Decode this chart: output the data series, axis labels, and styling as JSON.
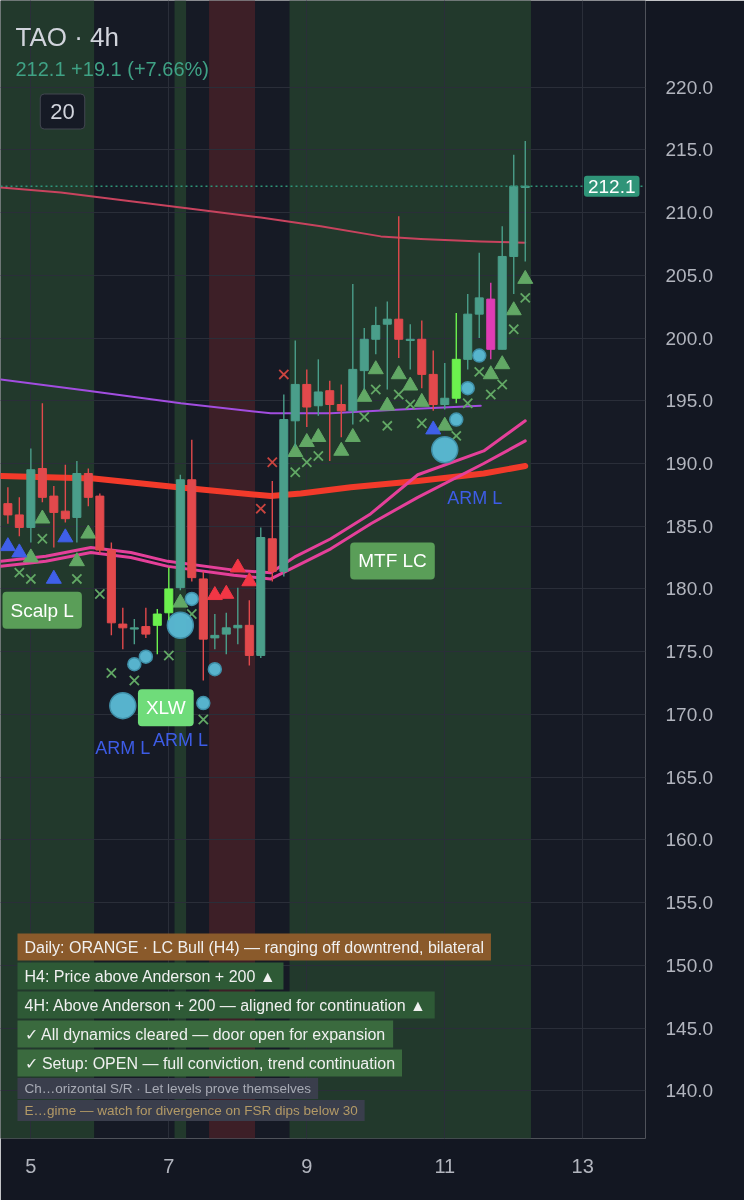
{
  "chart_data": {
    "type": "candlestick",
    "title": "TAO · 4h",
    "subtitle": "212.1 +19.1 (+7.66%)",
    "x": [
      4.667,
      4.833,
      5.0,
      5.167,
      5.333,
      5.5,
      5.667,
      5.833,
      6.0,
      6.167,
      6.333,
      6.5,
      6.667,
      6.833,
      7.0,
      7.167,
      7.333,
      7.5,
      7.667,
      7.833,
      8.0,
      8.167,
      8.333,
      8.5,
      8.667,
      8.833,
      9.0,
      9.167,
      9.333,
      9.5,
      9.667,
      9.833,
      10.0,
      10.167,
      10.333,
      10.5,
      10.667,
      10.833,
      11.0,
      11.167,
      11.333,
      11.5,
      11.667,
      11.833,
      12.0,
      12.167
    ],
    "ohlc": [
      [
        186.8,
        188.1,
        185.2,
        185.9
      ],
      [
        185.9,
        187.3,
        184.2,
        184.9
      ],
      [
        184.9,
        191.2,
        183.7,
        189.5
      ],
      [
        189.6,
        194.8,
        186.9,
        187.3
      ],
      [
        187.4,
        188.2,
        183.3,
        186.1
      ],
      [
        186.2,
        189.9,
        185.3,
        185.6
      ],
      [
        185.7,
        190.2,
        183.7,
        189.2
      ],
      [
        189.2,
        189.6,
        186.6,
        187.3
      ],
      [
        187.4,
        187.6,
        182.8,
        183.1
      ],
      [
        183.1,
        183.7,
        176.3,
        177.3
      ],
      [
        177.2,
        178.5,
        175.2,
        176.9
      ],
      [
        176.8,
        177.6,
        175.6,
        176.9
      ],
      [
        177.0,
        178.5,
        176.1,
        176.4
      ],
      [
        177.1,
        178.4,
        174.8,
        178.0
      ],
      [
        178.1,
        181.7,
        177.5,
        180.0
      ],
      [
        180.1,
        189.1,
        179.9,
        188.7
      ],
      [
        188.7,
        191.9,
        180.6,
        180.9
      ],
      [
        180.8,
        181.4,
        172.7,
        176.0
      ],
      [
        176.1,
        178.0,
        175.2,
        176.3
      ],
      [
        176.4,
        178.1,
        174.8,
        176.9
      ],
      [
        176.9,
        180.1,
        175.6,
        177.1
      ],
      [
        177.1,
        179.1,
        173.9,
        174.7
      ],
      [
        174.7,
        184.9,
        174.5,
        184.1
      ],
      [
        184.0,
        188.6,
        180.6,
        181.4
      ],
      [
        181.4,
        195.5,
        181.0,
        193.5
      ],
      [
        193.4,
        199.8,
        191.3,
        196.3
      ],
      [
        196.3,
        197.5,
        192.9,
        194.5
      ],
      [
        194.6,
        198.3,
        193.8,
        195.7
      ],
      [
        195.8,
        196.6,
        190.2,
        194.7
      ],
      [
        194.7,
        196.3,
        192.1,
        194.2
      ],
      [
        194.2,
        204.3,
        193.1,
        197.5
      ],
      [
        197.4,
        200.8,
        195.9,
        199.9
      ],
      [
        199.9,
        202.5,
        198.7,
        201.0
      ],
      [
        201.1,
        202.9,
        195.9,
        201.5
      ],
      [
        201.5,
        209.7,
        198.4,
        199.9
      ],
      [
        199.8,
        201.1,
        197.5,
        199.9
      ],
      [
        199.9,
        201.4,
        196.0,
        197.1
      ],
      [
        197.1,
        199.0,
        194.2,
        194.7
      ],
      [
        194.7,
        198.0,
        194.3,
        195.2
      ],
      [
        195.2,
        202.0,
        194.8,
        198.3
      ],
      [
        198.3,
        203.5,
        197.5,
        201.9
      ],
      [
        201.9,
        206.8,
        200.0,
        203.2
      ],
      [
        203.1,
        204.4,
        198.3,
        199.1
      ],
      [
        199.1,
        208.9,
        199.1,
        206.5
      ],
      [
        206.5,
        214.6,
        203.5,
        212.1
      ],
      [
        212.0,
        215.7,
        206.1,
        212.1
      ]
    ],
    "colors": [
      "#e2494c",
      "#e2494c",
      "#4a9e8a",
      "#e2494c",
      "#e2494c",
      "#e2494c",
      "#4a9e8a",
      "#e2494c",
      "#e2494c",
      "#e2494c",
      "#e2494c",
      "#4a9e8a",
      "#e2494c",
      "#6cf04e",
      "#6cf04e",
      "#4a9e8a",
      "#e2494c",
      "#e2494c",
      "#4a9e8a",
      "#4a9e8a",
      "#4a9e8a",
      "#e2494c",
      "#4a9e8a",
      "#e2494c",
      "#4a9e8a",
      "#4a9e8a",
      "#e2494c",
      "#4a9e8a",
      "#e2494c",
      "#e2494c",
      "#4a9e8a",
      "#4a9e8a",
      "#4a9e8a",
      "#4a9e8a",
      "#e2494c",
      "#4a9e8a",
      "#e2494c",
      "#e2494c",
      "#4a9e8a",
      "#6cf04e",
      "#4a9e8a",
      "#4a9e8a",
      "#e03cb4",
      "#4a9e8a",
      "#4a9e8a",
      "#4a9e8a"
    ],
    "xlim": [
      4.56,
      13.91
    ],
    "xticks": [
      5,
      7,
      9,
      11,
      13
    ],
    "ylim": [
      136.2,
      226.9
    ],
    "yticks": [
      {
        "value": 140,
        "label": "140.0"
      },
      {
        "value": 145,
        "label": "145.0"
      },
      {
        "value": 150,
        "label": "150.0"
      },
      {
        "value": 155,
        "label": "155.0"
      },
      {
        "value": 160,
        "label": "160.0"
      },
      {
        "value": 165,
        "label": "165.0"
      },
      {
        "value": 170,
        "label": "170.0"
      },
      {
        "value": 175,
        "label": "175.0"
      },
      {
        "value": 180,
        "label": "180.0"
      },
      {
        "value": 185,
        "label": "185.0"
      },
      {
        "value": 190,
        "label": "190.0"
      },
      {
        "value": 195,
        "label": "195.0"
      },
      {
        "value": 200,
        "label": "200.0"
      },
      {
        "value": 205,
        "label": "205.0"
      },
      {
        "value": 210,
        "label": "210.0"
      },
      {
        "value": 215,
        "label": "215.0"
      },
      {
        "value": 220,
        "label": "220.0"
      }
    ],
    "grid": true,
    "series": [
      {
        "type": "line",
        "color": "#c8435e",
        "x": [
          4.566,
          5.435,
          6.449,
          7.464,
          8.333,
          9.203,
          10.073,
          10.652,
          11.522,
          12.167
        ],
        "values": [
          212.0,
          211.6,
          210.9,
          210.2,
          209.6,
          208.9,
          208.1,
          207.9,
          207.7,
          207.6
        ]
      },
      {
        "type": "line",
        "color": "#a24de0",
        "x": [
          4.566,
          5.826,
          7.174,
          8.478,
          9.348,
          10.362,
          11.522
        ],
        "values": [
          196.7,
          195.8,
          194.8,
          194.0,
          194.0,
          194.3,
          194.6
        ]
      },
      {
        "type": "line",
        "color": "#f23a2a",
        "x": [
          4.566,
          5.913,
          7.131,
          8.478,
          8.913,
          9.638,
          10.609,
          11.565,
          12.167
        ],
        "values": [
          189.0,
          188.8,
          188.1,
          187.4,
          187.6,
          188.1,
          188.6,
          189.2,
          189.8
        ]
      },
      {
        "type": "line",
        "color": "#e5409a",
        "x": [
          4.566,
          5.217,
          5.87,
          6.449,
          6.986,
          7.942,
          8.478,
          8.841,
          9.348,
          9.928,
          10.609,
          11.565,
          12.167
        ],
        "values": [
          182.2,
          182.6,
          183.3,
          182.9,
          182.2,
          181.5,
          181.3,
          182.6,
          184.0,
          186.0,
          189.1,
          191.0,
          193.4
        ]
      },
      {
        "type": "line",
        "color": "#e5409a",
        "x": [
          4.566,
          5.217,
          5.87,
          6.449,
          6.986,
          7.942,
          8.478,
          8.841,
          9.348,
          9.928,
          10.609,
          11.565,
          12.167
        ],
        "values": [
          181.8,
          182.2,
          182.9,
          182.5,
          181.8,
          181.1,
          180.8,
          181.8,
          183.2,
          185.2,
          187.3,
          190.0,
          191.8
        ]
      },
      {
        "type": "scatter",
        "marker": "triangle",
        "color": "#62a865",
        "x": [
          5.0,
          5.167,
          5.667,
          5.833,
          7.167,
          8.833,
          9.0,
          9.167,
          9.5,
          9.667,
          9.833,
          10.0,
          10.167,
          10.333,
          10.5,
          10.667,
          11.0,
          11.667,
          11.833,
          12.0,
          12.167
        ],
        "values": [
          182.5,
          185.6,
          182.2,
          184.4,
          178.9,
          190.9,
          191.7,
          192.1,
          191.0,
          192.1,
          195.3,
          197.5,
          194.6,
          197.1,
          196.2,
          194.9,
          193.0,
          197.1,
          197.9,
          202.2,
          204.7
        ]
      },
      {
        "type": "scatter",
        "marker": "cross",
        "color": "#62a865",
        "x": [
          4.833,
          5.0,
          5.167,
          5.667,
          6.0,
          6.167,
          6.5,
          7.0,
          7.333,
          7.5,
          8.833,
          9.0,
          9.167,
          9.833,
          10.0,
          10.167,
          10.333,
          10.5,
          10.667,
          11.167,
          11.333,
          11.5,
          11.667,
          11.833,
          12.0,
          12.167
        ],
        "values": [
          181.3,
          180.8,
          184.0,
          180.8,
          179.6,
          173.3,
          172.7,
          174.7,
          178.0,
          169.6,
          189.3,
          190.1,
          190.6,
          193.7,
          195.9,
          193.0,
          195.5,
          194.7,
          193.2,
          192.2,
          194.8,
          197.3,
          195.5,
          196.3,
          200.7,
          203.2
        ]
      },
      {
        "type": "scatter",
        "marker": "triangle",
        "color": "#3f5fe8",
        "x": [
          4.667,
          4.833,
          5.333,
          5.5,
          10.833
        ],
        "values": [
          183.4,
          182.9,
          180.8,
          184.1,
          192.7
        ]
      },
      {
        "type": "scatter",
        "marker": "triangle",
        "color": "#f23645",
        "x": [
          7.667,
          7.833,
          8.0,
          8.167
        ],
        "values": [
          179.5,
          179.6,
          181.7,
          180.6
        ]
      },
      {
        "type": "scatter",
        "marker": "cross",
        "color": "#c9443f",
        "x": [
          8.333,
          8.5,
          8.667
        ],
        "values": [
          186.4,
          190.1,
          197.1
        ]
      },
      {
        "type": "bubble",
        "color": "#5bbcd6",
        "x": [
          6.333,
          7.167,
          11.0,
          6.5,
          6.667,
          7.333,
          7.5,
          7.667,
          11.167,
          11.333,
          11.5
        ],
        "values": [
          170.7,
          177.1,
          191.1,
          174.0,
          174.6,
          179.2,
          170.9,
          173.6,
          193.5,
          196.0,
          198.6
        ],
        "sizes": [
          1,
          1,
          1,
          0.25,
          0.25,
          0.25,
          0.25,
          0.25,
          0.25,
          0.25,
          0.25
        ]
      }
    ],
    "ref_lines": [
      {
        "axis": "y",
        "value": 212.1,
        "label": "212.1",
        "color": "#2f9478",
        "line_style": "dotted"
      }
    ],
    "bands": [
      {
        "axis": "x",
        "from": 4.56,
        "to": 5.917,
        "color": "#22392c"
      },
      {
        "axis": "x",
        "from": 7.083,
        "to": 7.25,
        "color": "#22392c"
      },
      {
        "axis": "x",
        "from": 7.583,
        "to": 8.25,
        "color": "#3d1f27"
      },
      {
        "axis": "x",
        "from": 8.75,
        "to": 12.25,
        "color": "#22392c"
      }
    ],
    "annotations": [
      "20",
      {
        "text": "Scalp L",
        "x": 5.0,
        "y": 180.8
      },
      {
        "text": "XLW",
        "x": 7.0,
        "y": 174.7
      },
      "MTF LC",
      {
        "text": "ARM L",
        "x": 6.333,
        "y": 170.7
      },
      "ARM L",
      {
        "text": "ARM L",
        "x": 11.0,
        "y": 191.1
      },
      "Daily: ORANGE · LC Bull (H4) — ranging off downtrend, bilateral",
      "H4: Price above Anderson + 200 ▲",
      "4H: Above Anderson + 200 — aligned for continuation ▲",
      "✓ All dynamics cleared — door open for expansion",
      "✓ Setup: OPEN — full conviction, trend continuation",
      "Ch…orizontal S/R · Let levels prove themselves",
      "E…gime — watch for divergence on FSR dips below 30"
    ]
  }
}
